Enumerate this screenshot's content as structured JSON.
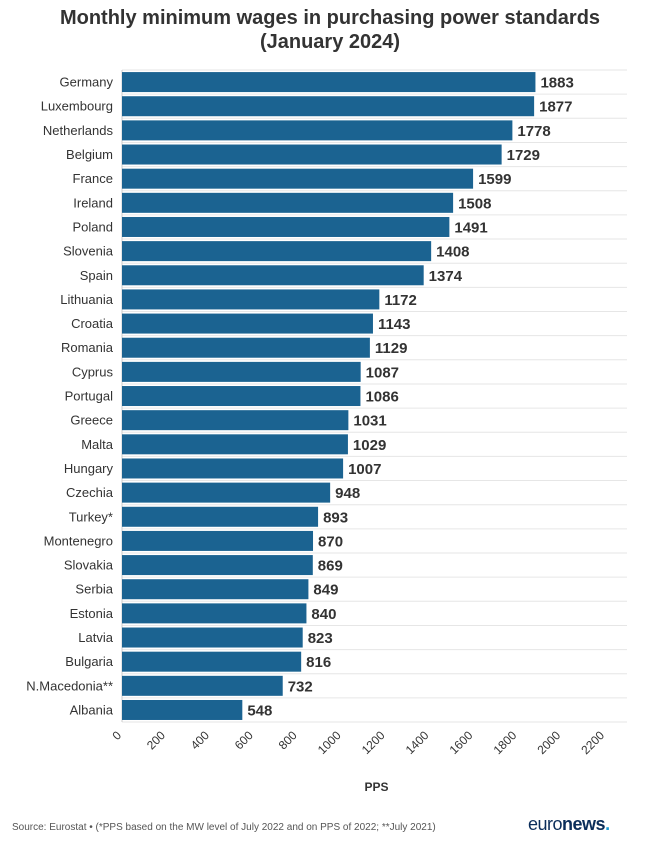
{
  "header": {
    "title_line1": "Monthly minimum wages in purchasing power standards",
    "title_line2": "(January 2024)"
  },
  "footer": {
    "source": "Source: Eurostat • (*PPS based on the MW level of July 2022 and on PPS of 2022; **July 2021)",
    "brand_part1": "euro",
    "brand_part2": "news",
    "brand_dot": "."
  },
  "colors": {
    "bar": "#1b6391",
    "grid": "#e6e6e6",
    "text": "#333333",
    "brand": "#0a2d5a",
    "brand_dot": "#1c9bd4"
  },
  "chart_data": {
    "type": "bar",
    "orientation": "horizontal",
    "categories": [
      "Germany",
      "Luxembourg",
      "Netherlands",
      "Belgium",
      "France",
      "Ireland",
      "Poland",
      "Slovenia",
      "Spain",
      "Lithuania",
      "Croatia",
      "Romania",
      "Cyprus",
      "Portugal",
      "Greece",
      "Malta",
      "Hungary",
      "Czechia",
      "Turkey*",
      "Montenegro",
      "Slovakia",
      "Serbia",
      "Estonia",
      "Latvia",
      "Bulgaria",
      "N.Macedonia**",
      "Albania"
    ],
    "values": [
      1883,
      1877,
      1778,
      1729,
      1599,
      1508,
      1491,
      1408,
      1374,
      1172,
      1143,
      1129,
      1087,
      1086,
      1031,
      1029,
      1007,
      948,
      893,
      870,
      869,
      849,
      840,
      823,
      816,
      732,
      548
    ],
    "xlabel": "PPS",
    "xlim": [
      0,
      2300
    ],
    "xticks": [
      0,
      200,
      400,
      600,
      800,
      1000,
      1200,
      1400,
      1600,
      1800,
      2000,
      2200
    ],
    "grid": true,
    "data_labels": true
  }
}
